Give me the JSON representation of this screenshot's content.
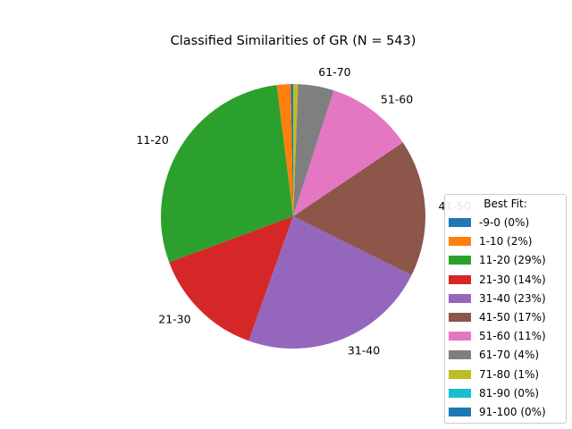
{
  "chart_data": {
    "type": "pie",
    "title": "Classified Similarities of GR (N = 543)",
    "slices": [
      {
        "label": "-9-0",
        "legend": "-9-0 (0%)",
        "value": 0.3,
        "color": "#1f77b4",
        "show_label": false
      },
      {
        "label": "1-10",
        "legend": "1-10 (2%)",
        "value": 1.7,
        "color": "#ff7f0e",
        "show_label": false
      },
      {
        "label": "11-20",
        "legend": "11-20 (29%)",
        "value": 28.9,
        "color": "#2ca02c",
        "show_label": true
      },
      {
        "label": "21-30",
        "legend": "21-30 (14%)",
        "value": 14.0,
        "color": "#d62728",
        "show_label": true
      },
      {
        "label": "31-40",
        "legend": "31-40 (23%)",
        "value": 23.3,
        "color": "#9467bd",
        "show_label": true
      },
      {
        "label": "41-50",
        "legend": "41-50 (17%)",
        "value": 16.9,
        "color": "#8c564b",
        "show_label": true
      },
      {
        "label": "51-60",
        "legend": "51-60 (11%)",
        "value": 10.7,
        "color": "#e377c2",
        "show_label": true
      },
      {
        "label": "61-70",
        "legend": "61-70 (4%)",
        "value": 4.4,
        "color": "#7f7f7f",
        "show_label": true
      },
      {
        "label": "71-80",
        "legend": "71-80 (1%)",
        "value": 0.6,
        "color": "#bcbd22",
        "show_label": false
      },
      {
        "label": "81-90",
        "legend": "81-90 (0%)",
        "value": 0.0,
        "color": "#17becf",
        "show_label": false
      },
      {
        "label": "91-100",
        "legend": "91-100 (0%)",
        "value": 0.0,
        "color": "#1f77b4",
        "show_label": false
      }
    ],
    "start_angle_deg": 90,
    "direction": "counterclockwise",
    "legend_title": "Best Fit:",
    "legend_placement": "right"
  }
}
